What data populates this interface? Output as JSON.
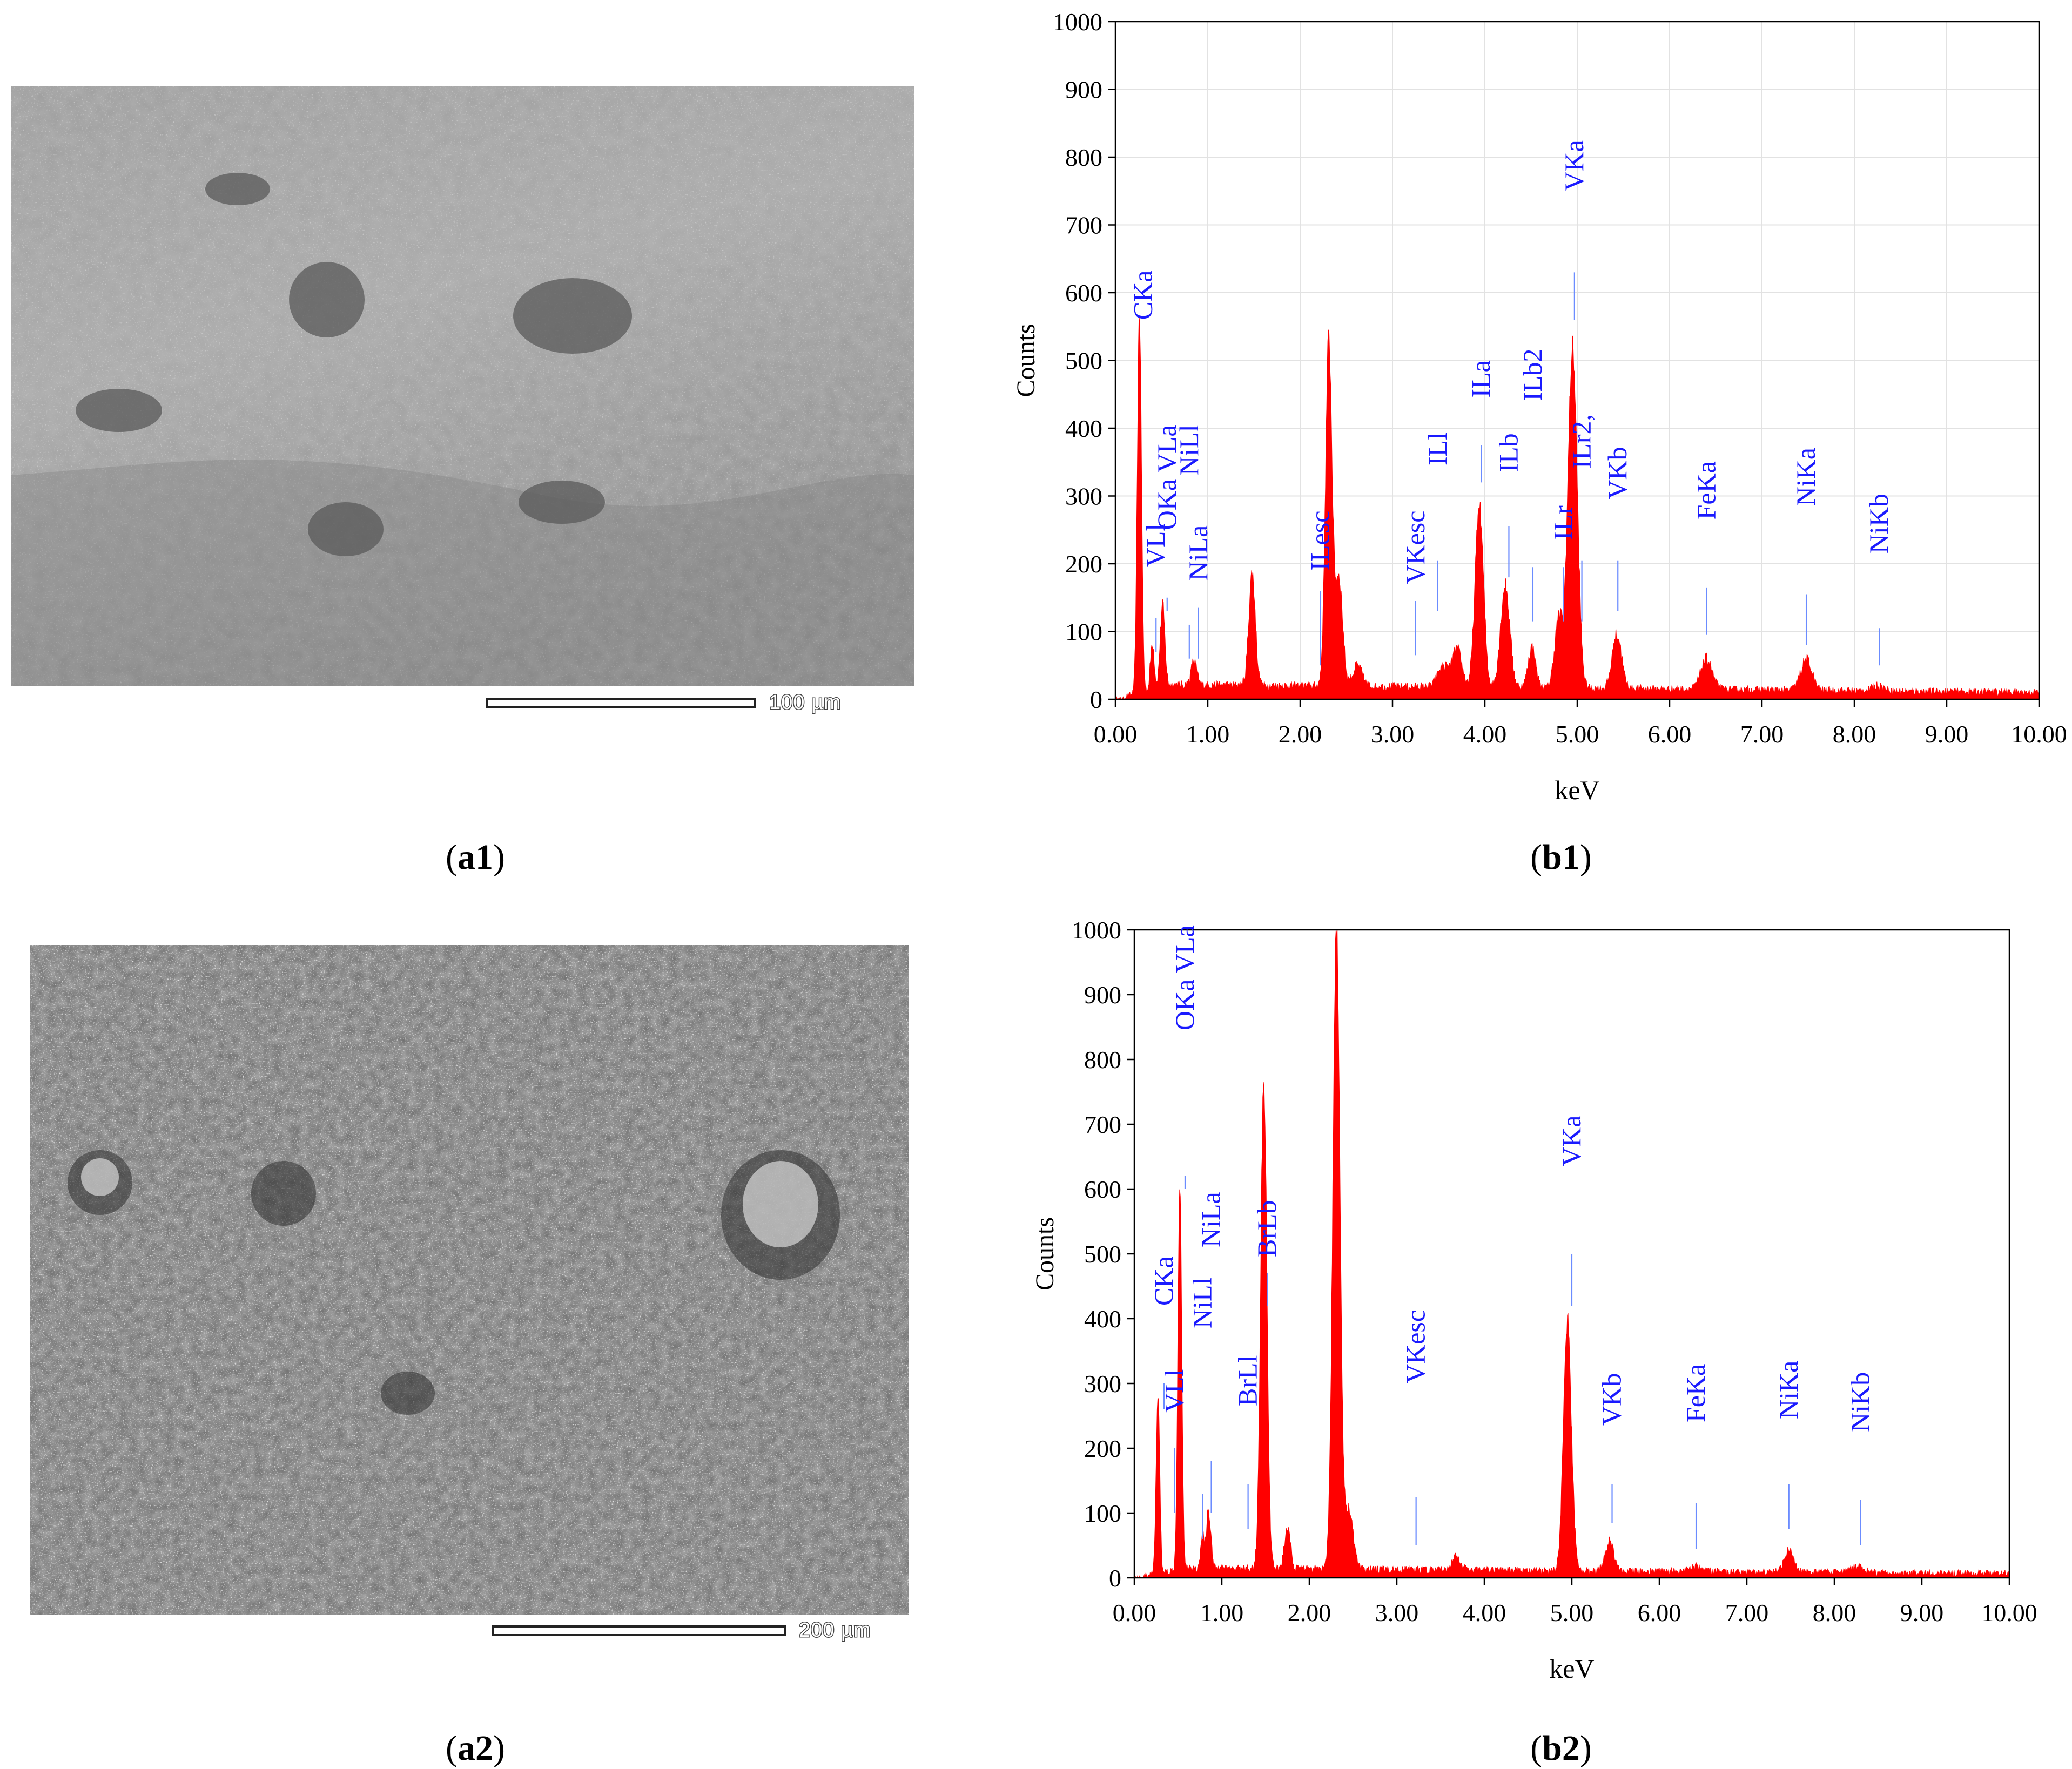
{
  "panels": [
    {
      "id": "a1",
      "caption_letter": "a1",
      "scale_label": "100 µm"
    },
    {
      "id": "a2",
      "caption_letter": "a2",
      "scale_label": "200 µm"
    }
  ],
  "chart_data": [
    {
      "id": "b1",
      "caption": "b1",
      "type": "line",
      "xlabel": "keV",
      "ylabel": "Counts",
      "xlim": [
        0,
        10
      ],
      "ylim": [
        0,
        1000
      ],
      "xticks": [
        "0.00",
        "1.00",
        "2.00",
        "3.00",
        "4.00",
        "5.00",
        "6.00",
        "7.00",
        "8.00",
        "9.00",
        "10.00"
      ],
      "yticks": [
        "0",
        "100",
        "200",
        "300",
        "400",
        "500",
        "600",
        "700",
        "800",
        "900",
        "1000"
      ],
      "grid": true,
      "color": "#ff0000",
      "label_color": "#1a1aff",
      "background": 22,
      "peaks": [
        {
          "x": 0.26,
          "y": 560,
          "w": 0.022
        },
        {
          "x": 0.4,
          "y": 70,
          "w": 0.02
        },
        {
          "x": 0.51,
          "y": 120,
          "w": 0.025
        },
        {
          "x": 0.85,
          "y": 35,
          "w": 0.03
        },
        {
          "x": 1.48,
          "y": 165,
          "w": 0.035
        },
        {
          "x": 2.31,
          "y": 510,
          "w": 0.035
        },
        {
          "x": 2.42,
          "y": 160,
          "w": 0.04
        },
        {
          "x": 2.62,
          "y": 30,
          "w": 0.05
        },
        {
          "x": 3.55,
          "y": 30,
          "w": 0.06
        },
        {
          "x": 3.7,
          "y": 55,
          "w": 0.05
        },
        {
          "x": 3.94,
          "y": 265,
          "w": 0.045
        },
        {
          "x": 4.22,
          "y": 150,
          "w": 0.05
        },
        {
          "x": 4.51,
          "y": 60,
          "w": 0.04
        },
        {
          "x": 4.8,
          "y": 100,
          "w": 0.045
        },
        {
          "x": 4.95,
          "y": 500,
          "w": 0.05
        },
        {
          "x": 5.43,
          "y": 80,
          "w": 0.05
        },
        {
          "x": 6.4,
          "y": 45,
          "w": 0.06
        },
        {
          "x": 7.48,
          "y": 45,
          "w": 0.06
        },
        {
          "x": 8.26,
          "y": 8,
          "w": 0.06
        }
      ],
      "annotations": [
        {
          "text": "CKa",
          "x": 0.3,
          "y_top": 560,
          "line_top": 560,
          "line_bottom": 560
        },
        {
          "text": "VLl",
          "x": 0.44,
          "y_top": 195,
          "line_top": 120,
          "line_bottom": 70
        },
        {
          "text": "OKa VLa",
          "x": 0.56,
          "y_top": 250,
          "line_top": 150,
          "line_bottom": 130
        },
        {
          "text": "NiLl",
          "x": 0.8,
          "y_top": 330,
          "line_top": 110,
          "line_bottom": 60
        },
        {
          "text": "NiLa",
          "x": 0.9,
          "y_top": 175,
          "line_top": 135,
          "line_bottom": 60
        },
        {
          "text": "ILesc",
          "x": 2.22,
          "y_top": 190,
          "line_top": 160,
          "line_bottom": 50
        },
        {
          "text": "VKesc",
          "x": 3.25,
          "y_top": 170,
          "line_top": 145,
          "line_bottom": 65
        },
        {
          "text": "ILl",
          "x": 3.49,
          "y_top": 345,
          "line_top": 205,
          "line_bottom": 130
        },
        {
          "text": "ILa",
          "x": 3.96,
          "y_top": 445,
          "line_top": 375,
          "line_bottom": 320
        },
        {
          "text": "ILb",
          "x": 4.26,
          "y_top": 335,
          "line_top": 255,
          "line_bottom": 180
        },
        {
          "text": "ILb2",
          "x": 4.52,
          "y_top": 440,
          "line_top": 195,
          "line_bottom": 115
        },
        {
          "text": "ILr",
          "x": 4.85,
          "y_top": 235,
          "line_top": 195,
          "line_bottom": 115
        },
        {
          "text": "VKa",
          "x": 4.97,
          "y_top": 750,
          "line_top": 630,
          "line_bottom": 560
        },
        {
          "text": "ILr2,",
          "x": 5.05,
          "y_top": 340,
          "line_top": 205,
          "line_bottom": 115
        },
        {
          "text": "VKb",
          "x": 5.44,
          "y_top": 295,
          "line_top": 205,
          "line_bottom": 130
        },
        {
          "text": "FeKa",
          "x": 6.4,
          "y_top": 265,
          "line_top": 165,
          "line_bottom": 95
        },
        {
          "text": "NiKa",
          "x": 7.48,
          "y_top": 285,
          "line_top": 155,
          "line_bottom": 80
        },
        {
          "text": "NiKb",
          "x": 8.27,
          "y_top": 215,
          "line_top": 105,
          "line_bottom": 50
        }
      ]
    },
    {
      "id": "b2",
      "caption": "b2",
      "type": "line",
      "xlabel": "keV",
      "ylabel": "Counts",
      "xlim": [
        0,
        10
      ],
      "ylim": [
        0,
        1000
      ],
      "xticks": [
        "0.00",
        "1.00",
        "2.00",
        "3.00",
        "4.00",
        "5.00",
        "6.00",
        "7.00",
        "8.00",
        "9.00",
        "10.00"
      ],
      "yticks": [
        "0",
        "100",
        "200",
        "300",
        "400",
        "500",
        "600",
        "700",
        "800",
        "900",
        "1000"
      ],
      "grid": false,
      "color": "#ff0000",
      "label_color": "#1a1aff",
      "background": 15,
      "peaks": [
        {
          "x": 0.27,
          "y": 275,
          "w": 0.02
        },
        {
          "x": 0.52,
          "y": 600,
          "w": 0.022
        },
        {
          "x": 0.78,
          "y": 50,
          "w": 0.02
        },
        {
          "x": 0.85,
          "y": 90,
          "w": 0.025
        },
        {
          "x": 1.48,
          "y": 750,
          "w": 0.035
        },
        {
          "x": 1.75,
          "y": 60,
          "w": 0.035
        },
        {
          "x": 2.31,
          "y": 990,
          "w": 0.04
        },
        {
          "x": 2.45,
          "y": 90,
          "w": 0.05
        },
        {
          "x": 3.68,
          "y": 20,
          "w": 0.05
        },
        {
          "x": 4.95,
          "y": 385,
          "w": 0.045
        },
        {
          "x": 5.43,
          "y": 45,
          "w": 0.05
        },
        {
          "x": 6.4,
          "y": 8,
          "w": 0.06
        },
        {
          "x": 7.48,
          "y": 35,
          "w": 0.05
        },
        {
          "x": 8.26,
          "y": 10,
          "w": 0.06
        }
      ],
      "annotations": [
        {
          "text": "CKa",
          "x": 0.34,
          "y_top": 420,
          "line_top": 300,
          "line_bottom": 260
        },
        {
          "text": "VLl",
          "x": 0.46,
          "y_top": 255,
          "line_top": 200,
          "line_bottom": 100
        },
        {
          "text": "OKa VLa",
          "x": 0.58,
          "y_top": 845,
          "line_top": 620,
          "line_bottom": 600
        },
        {
          "text": "NiLl",
          "x": 0.78,
          "y_top": 385,
          "line_top": 130,
          "line_bottom": 60
        },
        {
          "text": "NiLa",
          "x": 0.88,
          "y_top": 510,
          "line_top": 180,
          "line_bottom": 100
        },
        {
          "text": "BrLl",
          "x": 1.3,
          "y_top": 265,
          "line_top": 145,
          "line_bottom": 75
        },
        {
          "text": "BrLb",
          "x": 1.52,
          "y_top": 495,
          "line_top": 470,
          "line_bottom": 420
        },
        {
          "text": "VKesc",
          "x": 3.22,
          "y_top": 300,
          "line_top": 125,
          "line_bottom": 50
        },
        {
          "text": "VKa",
          "x": 5.0,
          "y_top": 635,
          "line_top": 500,
          "line_bottom": 420
        },
        {
          "text": "VKb",
          "x": 5.46,
          "y_top": 235,
          "line_top": 145,
          "line_bottom": 85
        },
        {
          "text": "FeKa",
          "x": 6.42,
          "y_top": 240,
          "line_top": 115,
          "line_bottom": 45
        },
        {
          "text": "NiKa",
          "x": 7.48,
          "y_top": 245,
          "line_top": 145,
          "line_bottom": 75
        },
        {
          "text": "NiKb",
          "x": 8.3,
          "y_top": 225,
          "line_top": 120,
          "line_bottom": 50
        }
      ]
    }
  ]
}
